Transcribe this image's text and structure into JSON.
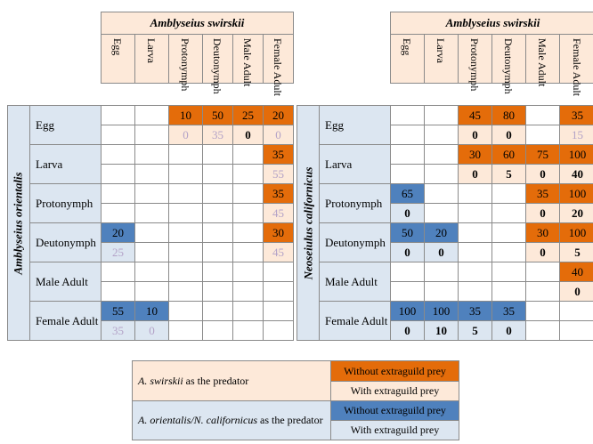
{
  "left_table": {
    "title": "Amblyseius swirskii",
    "predator_label": "Amblyseius orientalis",
    "columns": [
      "Egg",
      "Larva",
      "Protonymph",
      "Deutonymph",
      "Male Adult",
      "Female Adult"
    ],
    "rows": [
      {
        "label": "Egg",
        "top": [
          [
            "",
            ""
          ],
          [
            "",
            ""
          ],
          [
            "10",
            "orange"
          ],
          [
            "50",
            "orange"
          ],
          [
            "25",
            "orange"
          ],
          [
            "20",
            "orange"
          ]
        ],
        "bottom": [
          [
            "",
            ""
          ],
          [
            "",
            ""
          ],
          [
            "0",
            "peach faint"
          ],
          [
            "35",
            "peach faint"
          ],
          [
            "0",
            "peach bold"
          ],
          [
            "0",
            "peach faint"
          ]
        ]
      },
      {
        "label": "Larva",
        "top": [
          [
            "",
            ""
          ],
          [
            "",
            ""
          ],
          [
            "",
            ""
          ],
          [
            "",
            ""
          ],
          [
            "",
            ""
          ],
          [
            "35",
            "orange"
          ]
        ],
        "bottom": [
          [
            "",
            ""
          ],
          [
            "",
            ""
          ],
          [
            "",
            ""
          ],
          [
            "",
            ""
          ],
          [
            "",
            ""
          ],
          [
            "55",
            "peach faint"
          ]
        ]
      },
      {
        "label": "Protonymph",
        "top": [
          [
            "",
            ""
          ],
          [
            "",
            ""
          ],
          [
            "",
            ""
          ],
          [
            "",
            ""
          ],
          [
            "",
            ""
          ],
          [
            "35",
            "orange"
          ]
        ],
        "bottom": [
          [
            "",
            ""
          ],
          [
            "",
            ""
          ],
          [
            "",
            ""
          ],
          [
            "",
            ""
          ],
          [
            "",
            ""
          ],
          [
            "45",
            "peach faint"
          ]
        ]
      },
      {
        "label": "Deutonymph",
        "top": [
          [
            "20",
            "blue"
          ],
          [
            "",
            ""
          ],
          [
            "",
            ""
          ],
          [
            "",
            ""
          ],
          [
            "",
            ""
          ],
          [
            "30",
            "orange"
          ]
        ],
        "bottom": [
          [
            "25",
            "lblue faint"
          ],
          [
            "",
            ""
          ],
          [
            "",
            ""
          ],
          [
            "",
            ""
          ],
          [
            "",
            ""
          ],
          [
            "45",
            "peach faint"
          ]
        ]
      },
      {
        "label": "Male Adult",
        "top": [
          [
            "",
            ""
          ],
          [
            "",
            ""
          ],
          [
            "",
            ""
          ],
          [
            "",
            ""
          ],
          [
            "",
            ""
          ],
          [
            "",
            ""
          ]
        ],
        "bottom": [
          [
            "",
            ""
          ],
          [
            "",
            ""
          ],
          [
            "",
            ""
          ],
          [
            "",
            ""
          ],
          [
            "",
            ""
          ],
          [
            "",
            ""
          ]
        ]
      },
      {
        "label": "Female Adult",
        "top": [
          [
            "55",
            "blue"
          ],
          [
            "10",
            "blue"
          ],
          [
            "",
            ""
          ],
          [
            "",
            ""
          ],
          [
            "",
            ""
          ],
          [
            "",
            ""
          ]
        ],
        "bottom": [
          [
            "35",
            "lblue faint"
          ],
          [
            "0",
            "lblue faint"
          ],
          [
            "",
            ""
          ],
          [
            "",
            ""
          ],
          [
            "",
            ""
          ],
          [
            "",
            ""
          ]
        ]
      }
    ]
  },
  "right_table": {
    "title": "Amblyseius swirskii",
    "predator_label": "Neoseiulus californicus",
    "columns": [
      "Egg",
      "Larva",
      "Protonymph",
      "Deutonymph",
      "Male Adult",
      "Female Adult"
    ],
    "rows": [
      {
        "label": "Egg",
        "top": [
          [
            "",
            ""
          ],
          [
            "",
            ""
          ],
          [
            "45",
            "orange"
          ],
          [
            "80",
            "orange"
          ],
          [
            "",
            ""
          ],
          [
            "35",
            "orange"
          ]
        ],
        "bottom": [
          [
            "",
            ""
          ],
          [
            "",
            ""
          ],
          [
            "0",
            "peach bold"
          ],
          [
            "0",
            "peach bold"
          ],
          [
            "",
            ""
          ],
          [
            "15",
            "peach faint"
          ]
        ]
      },
      {
        "label": "Larva",
        "top": [
          [
            "",
            ""
          ],
          [
            "",
            ""
          ],
          [
            "30",
            "orange"
          ],
          [
            "60",
            "orange"
          ],
          [
            "75",
            "orange"
          ],
          [
            "100",
            "orange"
          ]
        ],
        "bottom": [
          [
            "",
            ""
          ],
          [
            "",
            ""
          ],
          [
            "0",
            "peach bold"
          ],
          [
            "5",
            "peach bold"
          ],
          [
            "0",
            "peach bold"
          ],
          [
            "40",
            "peach bold"
          ]
        ]
      },
      {
        "label": "Protonymph",
        "top": [
          [
            "65",
            "blue"
          ],
          [
            "",
            ""
          ],
          [
            "",
            ""
          ],
          [
            "",
            ""
          ],
          [
            "35",
            "orange"
          ],
          [
            "100",
            "orange"
          ]
        ],
        "bottom": [
          [
            "0",
            "lblue bold"
          ],
          [
            "",
            ""
          ],
          [
            "",
            ""
          ],
          [
            "",
            ""
          ],
          [
            "0",
            "peach bold"
          ],
          [
            "20",
            "peach bold"
          ]
        ]
      },
      {
        "label": "Deutonymph",
        "top": [
          [
            "50",
            "blue"
          ],
          [
            "20",
            "blue"
          ],
          [
            "",
            ""
          ],
          [
            "",
            ""
          ],
          [
            "30",
            "orange"
          ],
          [
            "100",
            "orange"
          ]
        ],
        "bottom": [
          [
            "0",
            "lblue bold"
          ],
          [
            "0",
            "lblue bold"
          ],
          [
            "",
            ""
          ],
          [
            "",
            ""
          ],
          [
            "0",
            "peach bold"
          ],
          [
            "5",
            "peach bold"
          ]
        ]
      },
      {
        "label": "Male Adult",
        "top": [
          [
            "",
            ""
          ],
          [
            "",
            ""
          ],
          [
            "",
            ""
          ],
          [
            "",
            ""
          ],
          [
            "",
            ""
          ],
          [
            "40",
            "orange"
          ]
        ],
        "bottom": [
          [
            "",
            ""
          ],
          [
            "",
            ""
          ],
          [
            "",
            ""
          ],
          [
            "",
            ""
          ],
          [
            "",
            ""
          ],
          [
            "0",
            "peach bold"
          ]
        ]
      },
      {
        "label": "Female Adult",
        "top": [
          [
            "100",
            "blue"
          ],
          [
            "100",
            "blue"
          ],
          [
            "35",
            "blue"
          ],
          [
            "35",
            "blue"
          ],
          [
            "",
            ""
          ],
          [
            "",
            ""
          ]
        ],
        "bottom": [
          [
            "0",
            "lblue bold"
          ],
          [
            "10",
            "lblue bold"
          ],
          [
            "5",
            "lblue bold"
          ],
          [
            "0",
            "lblue bold"
          ],
          [
            "",
            ""
          ],
          [
            "",
            ""
          ]
        ]
      }
    ]
  },
  "legend": {
    "swirskii_label_italic": "A. swirskii",
    "swirskii_label_rest": " as the predator",
    "other_label_italic": "A. orientalis/N. californicus",
    "other_label_rest": " as the predator",
    "without": "Without extraguild prey",
    "with": "With extraguild prey",
    "colors": {
      "orange": "#e46c0a",
      "peach": "#fde9d9",
      "blue": "#4f81bd",
      "light_blue": "#dce6f1"
    }
  }
}
